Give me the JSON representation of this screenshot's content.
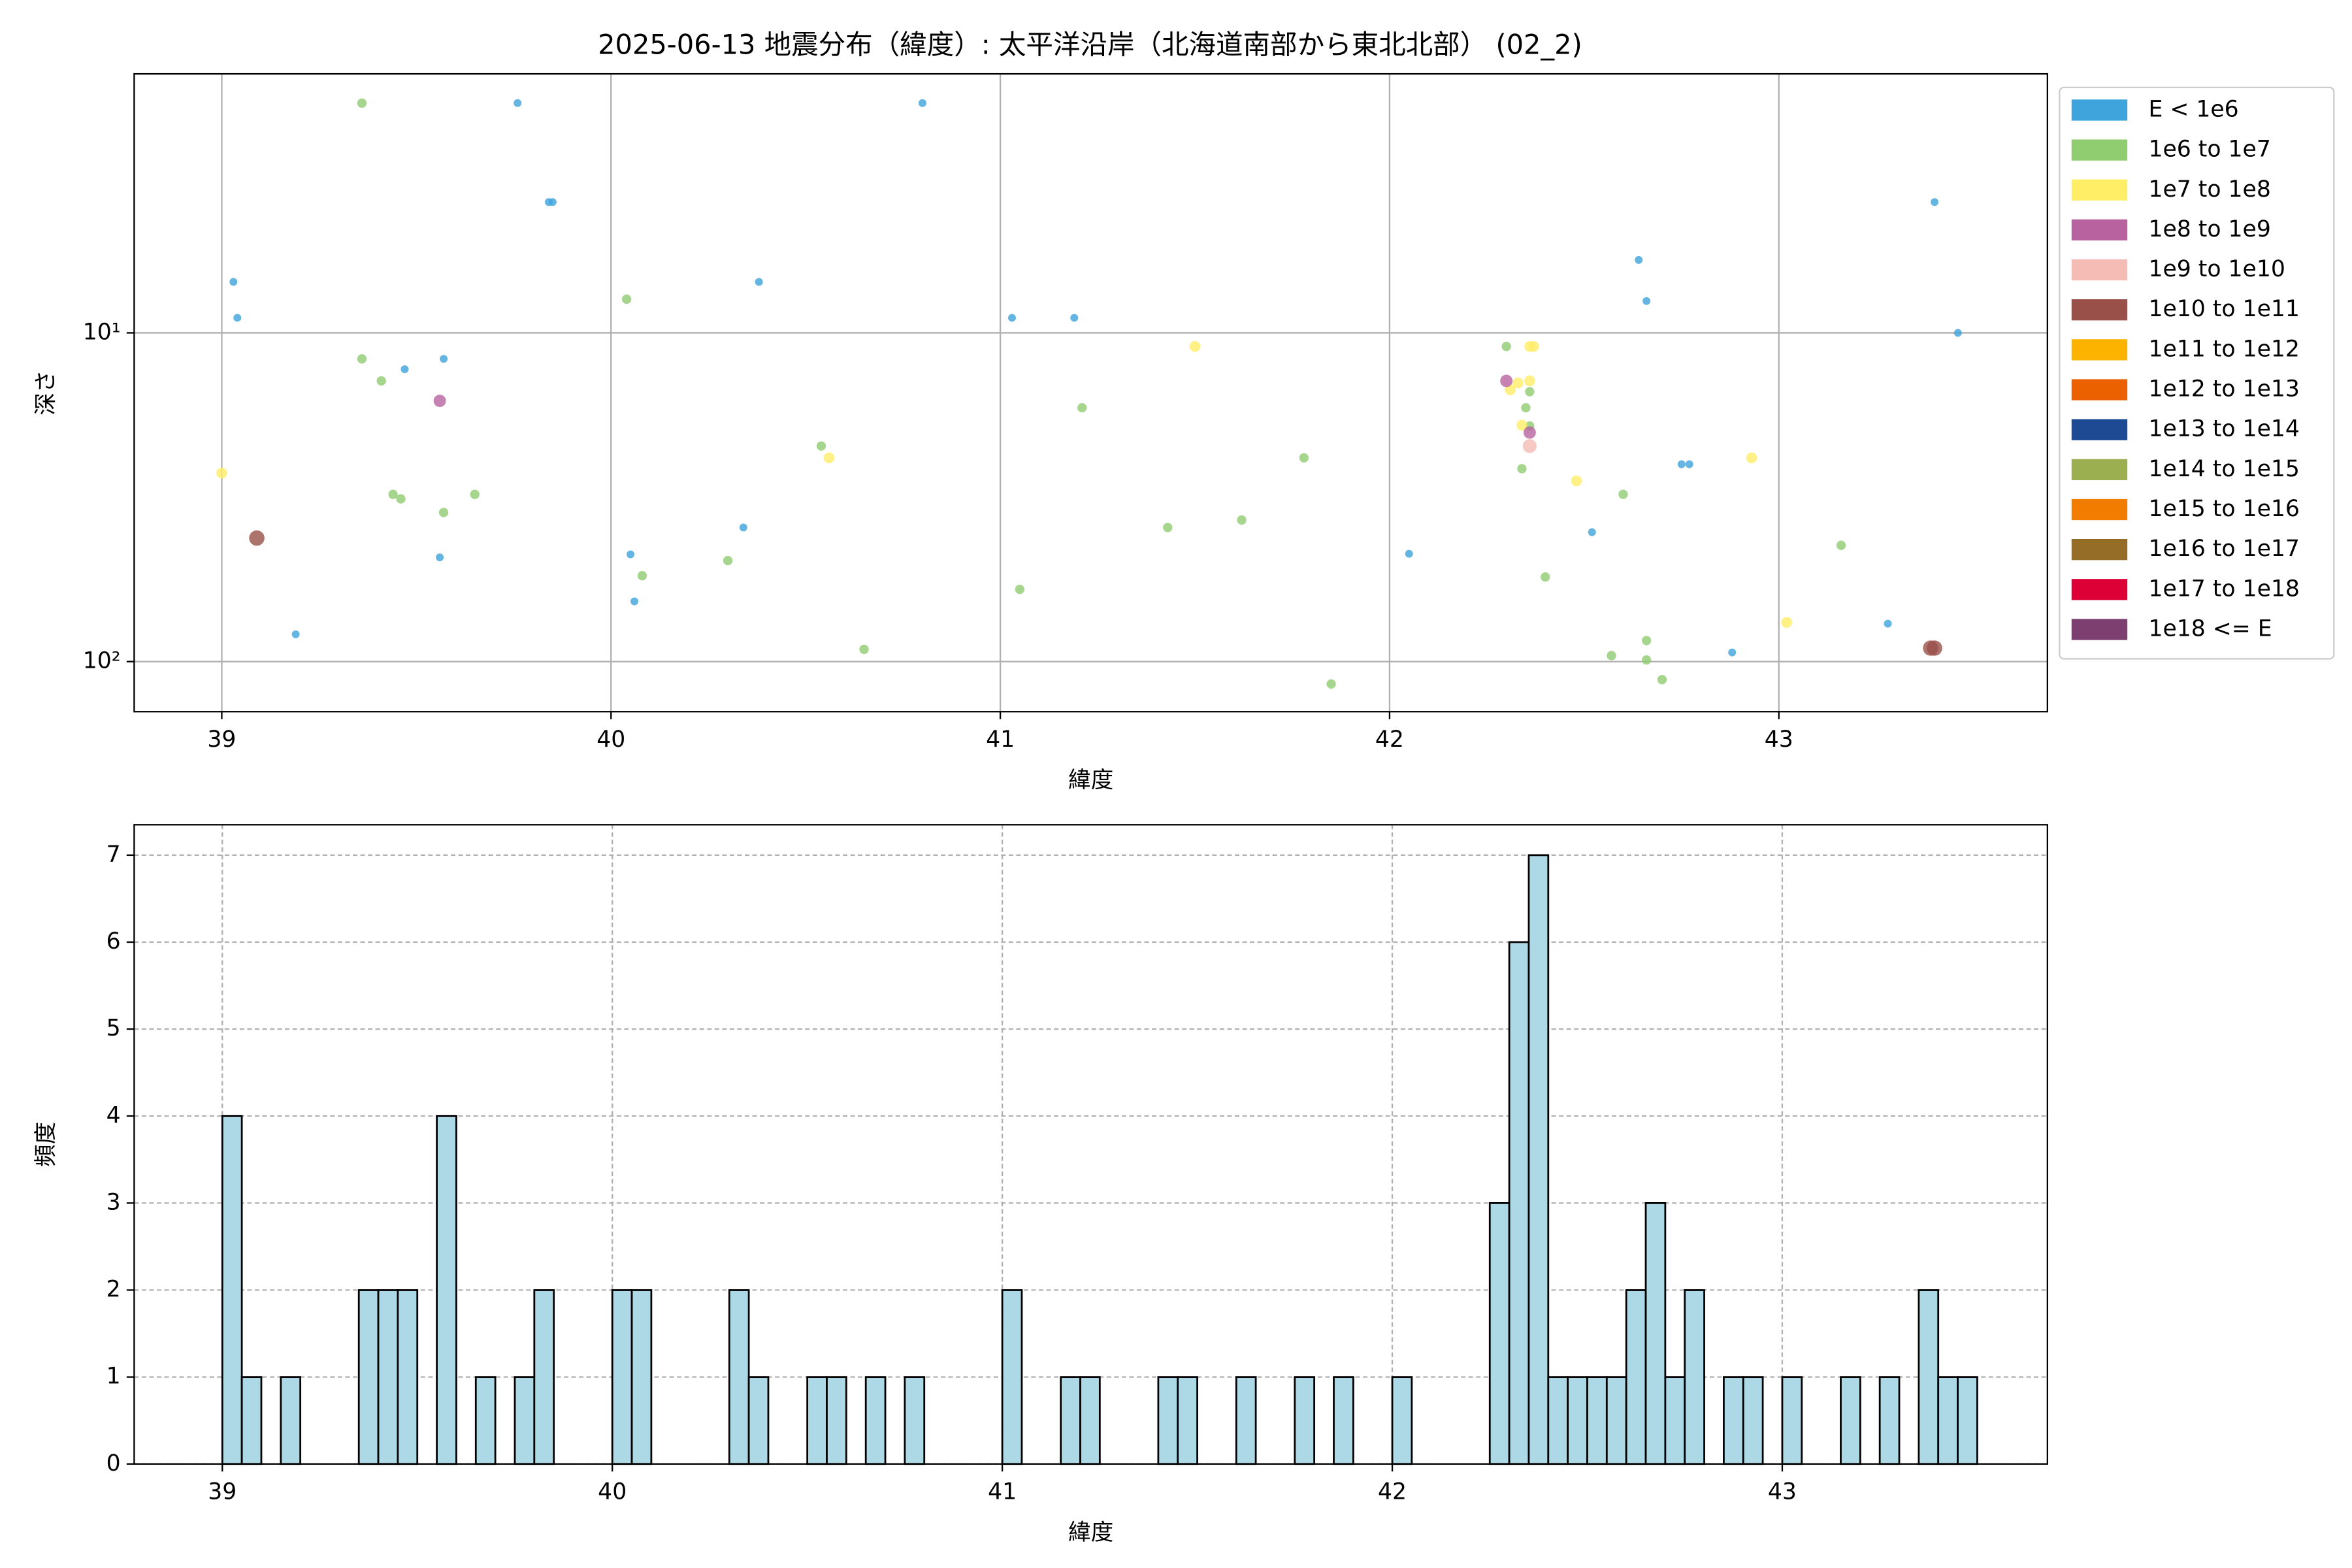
{
  "chart_data": [
    {
      "type": "scatter",
      "title": "2025-06-13 地震分布（緯度）: 太平洋沿岸（北海道南部から東北北部） (02_2)",
      "x_label": "緯度",
      "y_label": "深さ",
      "xlim": [
        38.775,
        43.69
      ],
      "xticks": [
        39,
        40,
        41,
        42,
        43
      ],
      "ylim": [
        1.63,
        142
      ],
      "y_log": true,
      "y_inverted": true,
      "yticks": [
        {
          "value": 10,
          "label": "10¹"
        },
        {
          "value": 100,
          "label": "10²"
        }
      ],
      "grid": true,
      "legend": "outside upper right",
      "series": [
        {
          "name": "E < 1e6",
          "color": "#3fa3dc",
          "x": [
            39.03,
            39.04,
            39.19,
            39.47,
            39.57,
            39.56,
            39.76,
            39.84,
            39.85,
            40.05,
            40.06,
            40.34,
            40.38,
            40.8,
            41.03,
            41.19,
            42.05,
            42.52,
            42.64,
            42.66,
            42.75,
            42.77,
            42.88,
            43.28,
            43.4,
            43.46
          ],
          "y": [
            7.0,
            9.0,
            82.6,
            12.9,
            12.0,
            48.2,
            2.0,
            4.0,
            4.0,
            47.2,
            65.6,
            39.1,
            7.0,
            2.0,
            9.0,
            9.0,
            47.0,
            40.4,
            6.0,
            8.0,
            25.1,
            25.1,
            93.8,
            76.7,
            4.0,
            10.0
          ]
        },
        {
          "name": "1e6 to 1e7",
          "color": "#90cc70",
          "x": [
            39.36,
            39.36,
            39.41,
            39.44,
            39.46,
            39.57,
            39.65,
            40.04,
            40.08,
            40.3,
            40.54,
            40.65,
            41.05,
            41.21,
            41.43,
            41.62,
            41.78,
            41.85,
            42.3,
            42.35,
            42.36,
            42.36,
            42.34,
            42.4,
            42.6,
            42.57,
            42.66,
            42.66,
            42.7,
            43.16
          ],
          "y": [
            2.0,
            12.0,
            14.0,
            31.0,
            32.0,
            35.2,
            31.0,
            7.9,
            54.8,
            49.3,
            22.1,
            91.8,
            60.3,
            16.9,
            39.1,
            37.1,
            24.0,
            117,
            11.0,
            16.9,
            15.1,
            19.2,
            25.9,
            55.3,
            31.0,
            95.9,
            86.3,
            98.9,
            113.5,
            44.3
          ]
        },
        {
          "name": "1e7 to 1e8",
          "color": "#ffee66",
          "x": [
            39.0,
            40.56,
            41.5,
            42.31,
            42.33,
            42.36,
            42.36,
            42.37,
            42.34,
            42.48,
            42.93,
            43.02
          ],
          "y": [
            26.7,
            24.0,
            11.0,
            14.9,
            14.2,
            14.0,
            11.0,
            11.0,
            19.1,
            28.2,
            24.0,
            76.0
          ]
        },
        {
          "name": "1e8 to 1e9",
          "color": "#b8639f",
          "x": [
            39.56,
            42.3,
            42.36
          ],
          "y": [
            16.1,
            14.0,
            20.1
          ]
        },
        {
          "name": "1e9 to 1e10",
          "color": "#f4bcb4",
          "x": [
            42.36
          ],
          "y": [
            22.1
          ]
        },
        {
          "name": "1e10 to 1e11",
          "color": "#985048",
          "x": [
            39.09,
            43.39,
            43.4
          ],
          "y": [
            42.1,
            91.0,
            91.0
          ]
        },
        {
          "name": "1e11 to 1e12",
          "color": "#fcb300",
          "x": [],
          "y": []
        },
        {
          "name": "1e12 to 1e13",
          "color": "#eb6100",
          "x": [],
          "y": []
        },
        {
          "name": "1e13 to 1e14",
          "color": "#1d4a93",
          "x": [],
          "y": []
        },
        {
          "name": "1e14 to 1e15",
          "color": "#9caf50",
          "x": [],
          "y": []
        },
        {
          "name": "1e15 to 1e16",
          "color": "#f17c00",
          "x": [],
          "y": []
        },
        {
          "name": "1e16 to 1e17",
          "color": "#966d26",
          "x": [],
          "y": []
        },
        {
          "name": "1e17 to 1e18",
          "color": "#dc0037",
          "x": [],
          "y": []
        },
        {
          "name": "1e18 <= E",
          "color": "#7d3f70",
          "x": [],
          "y": []
        }
      ]
    },
    {
      "type": "histogram",
      "x_label": "緯度",
      "y_label": "頻度",
      "color": "#add8e6",
      "edgecolor": "#000000",
      "xlim": [
        38.774,
        43.68
      ],
      "xticks": [
        39,
        40,
        41,
        42,
        43
      ],
      "ylim": [
        0,
        7.35
      ],
      "yticks": [
        0,
        1,
        2,
        3,
        4,
        5,
        6,
        7
      ],
      "grid": true,
      "grid_style": "dashed",
      "bins": [
        39,
        39.05,
        39.1,
        39.15,
        39.2,
        39.25,
        39.3,
        39.35,
        39.4,
        39.45,
        39.5,
        39.55,
        39.6,
        39.65,
        39.7,
        39.75,
        39.8,
        39.85,
        39.9,
        39.95,
        40,
        40.05,
        40.1,
        40.15,
        40.2,
        40.25,
        40.3,
        40.35,
        40.4,
        40.45,
        40.5,
        40.55,
        40.6,
        40.65,
        40.7,
        40.75,
        40.8,
        40.85,
        40.9,
        40.95,
        41,
        41.05,
        41.1,
        41.15,
        41.2,
        41.25,
        41.3,
        41.35,
        41.4,
        41.45,
        41.5,
        41.55,
        41.6,
        41.65,
        41.7,
        41.75,
        41.8,
        41.85,
        41.9,
        41.95,
        42,
        42.05,
        42.1,
        42.15,
        42.2,
        42.25,
        42.3,
        42.35,
        42.4,
        42.45,
        42.5,
        42.55,
        42.6,
        42.65,
        42.7,
        42.75,
        42.8,
        42.85,
        42.9,
        42.95,
        43,
        43.05,
        43.1,
        43.15,
        43.2,
        43.25,
        43.3,
        43.35,
        43.4,
        43.45,
        43.5
      ],
      "counts": [
        4,
        1,
        0,
        1,
        0,
        0,
        0,
        2,
        2,
        2,
        0,
        4,
        0,
        1,
        0,
        1,
        2,
        0,
        0,
        0,
        2,
        2,
        0,
        0,
        0,
        0,
        2,
        1,
        0,
        0,
        1,
        1,
        0,
        1,
        0,
        1,
        0,
        0,
        0,
        0,
        2,
        0,
        0,
        1,
        1,
        0,
        0,
        0,
        1,
        1,
        0,
        0,
        1,
        0,
        0,
        1,
        0,
        1,
        0,
        0,
        1,
        0,
        0,
        0,
        0,
        3,
        6,
        7,
        1,
        1,
        1,
        1,
        2,
        3,
        1,
        2,
        0,
        1,
        1,
        0,
        1,
        0,
        0,
        1,
        0,
        1,
        0,
        2,
        1,
        1
      ]
    }
  ]
}
